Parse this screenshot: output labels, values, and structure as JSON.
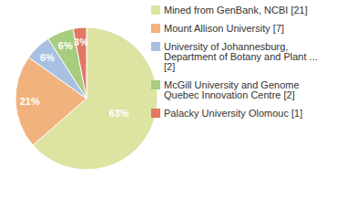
{
  "chart_data": {
    "type": "pie",
    "categories": [
      "Mined from GenBank, NCBI [21]",
      "Mount Allison University [7]",
      "University of Johannesburg, Department of Botany and Plant ... [2]",
      "McGill University and Genome Quebec Innovation Centre [2]",
      "Palacky University Olomouc [1]"
    ],
    "values": [
      63,
      21,
      6,
      6,
      3
    ],
    "value_labels": [
      "63%",
      "21%",
      "6%",
      "6%",
      "3%"
    ],
    "colors": [
      "#dde3a1",
      "#f2b27e",
      "#a8c0e2",
      "#a8cc80",
      "#e07864"
    ],
    "data_labels": true,
    "legend": "upper right"
  }
}
